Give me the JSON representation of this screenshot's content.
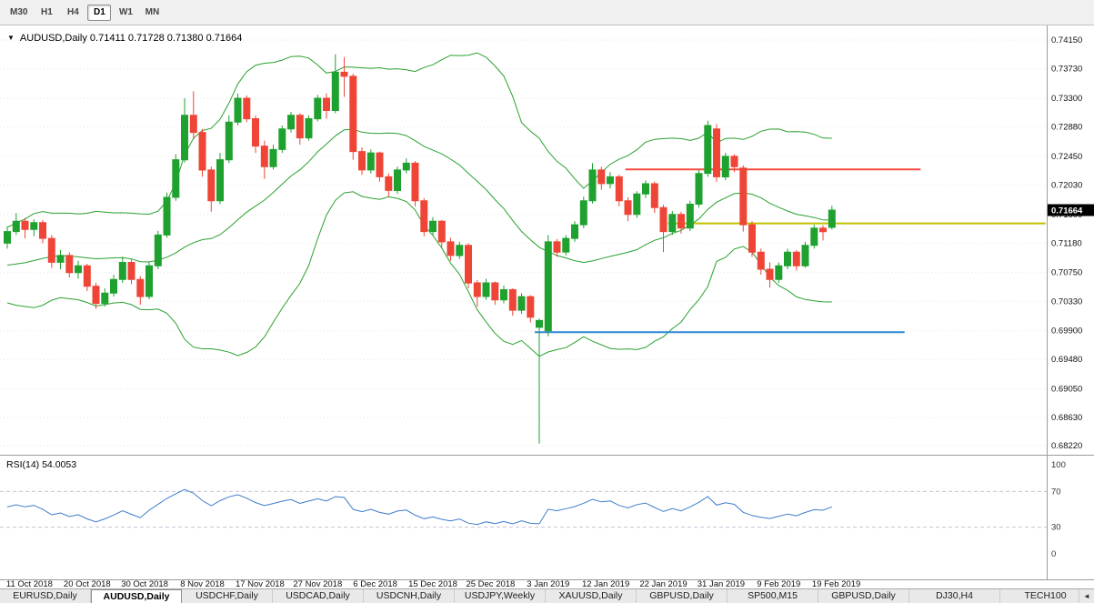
{
  "toolbar": {
    "timeframes": [
      {
        "label": "M30",
        "active": false
      },
      {
        "label": "H1",
        "active": false
      },
      {
        "label": "H4",
        "active": false
      },
      {
        "label": "D1",
        "active": true
      },
      {
        "label": "W1",
        "active": false
      },
      {
        "label": "MN",
        "active": false
      }
    ]
  },
  "chart": {
    "collapse_icon": "▼",
    "title": "AUDUSD,Daily 0.71411 0.71728 0.71380 0.71664",
    "price_badge": "0.71664",
    "rsi_label": "RSI(14) 54.0053"
  },
  "chart_data": {
    "type": "candlestick",
    "symbol": "AUDUSD",
    "timeframe": "Daily",
    "ohlc_current": {
      "open": 0.71411,
      "high": 0.71728,
      "low": 0.7138,
      "close": 0.71664
    },
    "ylim": [
      0.68127,
      0.7431
    ],
    "price_axis_labels": [
      "0.74150",
      "0.73730",
      "0.73300",
      "0.72880",
      "0.72450",
      "0.72030",
      "0.71600",
      "0.71180",
      "0.70750",
      "0.70330",
      "0.69900",
      "0.69480",
      "0.69050",
      "0.68630",
      "0.68220"
    ],
    "x_labels": [
      {
        "text": "11 Oct 2018",
        "i": 2.5
      },
      {
        "text": "20 Oct 2018",
        "i": 9
      },
      {
        "text": "30 Oct 2018",
        "i": 15.5
      },
      {
        "text": "8 Nov 2018",
        "i": 22
      },
      {
        "text": "17 Nov 2018",
        "i": 28.5
      },
      {
        "text": "27 Nov 2018",
        "i": 35
      },
      {
        "text": "6 Dec 2018",
        "i": 41.5
      },
      {
        "text": "15 Dec 2018",
        "i": 48
      },
      {
        "text": "25 Dec 2018",
        "i": 54.5
      },
      {
        "text": "3 Jan 2019",
        "i": 61
      },
      {
        "text": "12 Jan 2019",
        "i": 67.5
      },
      {
        "text": "22 Jan 2019",
        "i": 74
      },
      {
        "text": "31 Jan 2019",
        "i": 80.5
      },
      {
        "text": "9 Feb 2019",
        "i": 87
      },
      {
        "text": "19 Feb 2019",
        "i": 93.5
      }
    ],
    "pre_closes": [
      0.716,
      0.7145,
      0.713,
      0.715,
      0.7165,
      0.714,
      0.712,
      0.71,
      0.7085,
      0.706,
      0.704,
      0.7065,
      0.709,
      0.711,
      0.7085,
      0.7055,
      0.7035,
      0.705,
      0.708,
      0.7105,
      0.712,
      0.7095,
      0.7075,
      0.71,
      0.7115
    ],
    "candles": [
      [
        0.7118,
        0.7142,
        0.711,
        0.7135
      ],
      [
        0.7135,
        0.7162,
        0.713,
        0.715
      ],
      [
        0.715,
        0.7155,
        0.7125,
        0.7138
      ],
      [
        0.7138,
        0.7153,
        0.7128,
        0.7148
      ],
      [
        0.7148,
        0.7152,
        0.7118,
        0.7125
      ],
      [
        0.7125,
        0.713,
        0.7082,
        0.709
      ],
      [
        0.709,
        0.7108,
        0.708,
        0.71
      ],
      [
        0.71,
        0.7105,
        0.7068,
        0.7075
      ],
      [
        0.7075,
        0.7092,
        0.7066,
        0.7085
      ],
      [
        0.7085,
        0.7088,
        0.7048,
        0.7055
      ],
      [
        0.7055,
        0.706,
        0.7022,
        0.703
      ],
      [
        0.703,
        0.7052,
        0.7025,
        0.7045
      ],
      [
        0.7045,
        0.7072,
        0.704,
        0.7065
      ],
      [
        0.7065,
        0.7098,
        0.706,
        0.709
      ],
      [
        0.709,
        0.7094,
        0.7058,
        0.7065
      ],
      [
        0.7065,
        0.707,
        0.7028,
        0.704
      ],
      [
        0.704,
        0.709,
        0.7036,
        0.7085
      ],
      [
        0.7085,
        0.7136,
        0.708,
        0.713
      ],
      [
        0.713,
        0.7192,
        0.7126,
        0.7185
      ],
      [
        0.7185,
        0.7248,
        0.718,
        0.724
      ],
      [
        0.724,
        0.733,
        0.7236,
        0.7305
      ],
      [
        0.7305,
        0.734,
        0.727,
        0.728
      ],
      [
        0.728,
        0.7285,
        0.7215,
        0.7225
      ],
      [
        0.7225,
        0.723,
        0.7164,
        0.718
      ],
      [
        0.718,
        0.725,
        0.7175,
        0.724
      ],
      [
        0.724,
        0.7305,
        0.7235,
        0.7295
      ],
      [
        0.7295,
        0.7337,
        0.729,
        0.733
      ],
      [
        0.733,
        0.7334,
        0.7295,
        0.73
      ],
      [
        0.73,
        0.7305,
        0.725,
        0.726
      ],
      [
        0.726,
        0.7268,
        0.7212,
        0.723
      ],
      [
        0.723,
        0.7262,
        0.7226,
        0.7255
      ],
      [
        0.7255,
        0.729,
        0.725,
        0.7285
      ],
      [
        0.7285,
        0.731,
        0.728,
        0.7305
      ],
      [
        0.7305,
        0.7308,
        0.7262,
        0.7272
      ],
      [
        0.7272,
        0.7305,
        0.7268,
        0.73
      ],
      [
        0.73,
        0.7335,
        0.7296,
        0.733
      ],
      [
        0.733,
        0.7337,
        0.73,
        0.7312
      ],
      [
        0.7312,
        0.7394,
        0.7308,
        0.7368
      ],
      [
        0.7368,
        0.739,
        0.7332,
        0.7362
      ],
      [
        0.7362,
        0.7366,
        0.724,
        0.7252
      ],
      [
        0.7252,
        0.7258,
        0.7218,
        0.7225
      ],
      [
        0.7225,
        0.7255,
        0.722,
        0.725
      ],
      [
        0.725,
        0.7252,
        0.7208,
        0.7215
      ],
      [
        0.7215,
        0.722,
        0.7186,
        0.7195
      ],
      [
        0.7195,
        0.723,
        0.719,
        0.7225
      ],
      [
        0.7225,
        0.7242,
        0.722,
        0.7235
      ],
      [
        0.7235,
        0.7238,
        0.7172,
        0.718
      ],
      [
        0.718,
        0.7184,
        0.7128,
        0.7135
      ],
      [
        0.7135,
        0.7156,
        0.713,
        0.715
      ],
      [
        0.715,
        0.7152,
        0.7112,
        0.712
      ],
      [
        0.712,
        0.7126,
        0.7092,
        0.71
      ],
      [
        0.71,
        0.712,
        0.7095,
        0.7115
      ],
      [
        0.7115,
        0.7118,
        0.7052,
        0.706
      ],
      [
        0.706,
        0.7064,
        0.7025,
        0.704
      ],
      [
        0.704,
        0.7066,
        0.7035,
        0.706
      ],
      [
        0.706,
        0.7062,
        0.7028,
        0.7035
      ],
      [
        0.7035,
        0.7056,
        0.703,
        0.705
      ],
      [
        0.705,
        0.7052,
        0.7012,
        0.702
      ],
      [
        0.702,
        0.7045,
        0.7015,
        0.704
      ],
      [
        0.704,
        0.7042,
        0.7002,
        0.701
      ],
      [
        0.6995,
        0.7008,
        0.6825,
        0.7005
      ],
      [
        0.699,
        0.713,
        0.6982,
        0.712
      ],
      [
        0.712,
        0.7124,
        0.7098,
        0.7105
      ],
      [
        0.7105,
        0.713,
        0.71,
        0.7125
      ],
      [
        0.7125,
        0.715,
        0.712,
        0.7145
      ],
      [
        0.7145,
        0.7186,
        0.714,
        0.718
      ],
      [
        0.718,
        0.7235,
        0.7176,
        0.7225
      ],
      [
        0.7225,
        0.723,
        0.7196,
        0.7205
      ],
      [
        0.7205,
        0.7222,
        0.7198,
        0.7215
      ],
      [
        0.7215,
        0.7218,
        0.7172,
        0.718
      ],
      [
        0.718,
        0.7185,
        0.715,
        0.716
      ],
      [
        0.716,
        0.7194,
        0.7155,
        0.719
      ],
      [
        0.719,
        0.721,
        0.7184,
        0.7205
      ],
      [
        0.7205,
        0.7208,
        0.7162,
        0.717
      ],
      [
        0.717,
        0.7174,
        0.7105,
        0.7135
      ],
      [
        0.7135,
        0.7165,
        0.713,
        0.716
      ],
      [
        0.716,
        0.7164,
        0.7132,
        0.714
      ],
      [
        0.714,
        0.718,
        0.7136,
        0.7175
      ],
      [
        0.7175,
        0.7226,
        0.717,
        0.722
      ],
      [
        0.722,
        0.7297,
        0.7215,
        0.729
      ],
      [
        0.7285,
        0.7292,
        0.7208,
        0.7215
      ],
      [
        0.7215,
        0.725,
        0.721,
        0.7245
      ],
      [
        0.7245,
        0.7248,
        0.7222,
        0.723
      ],
      [
        0.7228,
        0.7232,
        0.7135,
        0.7145
      ],
      [
        0.7145,
        0.715,
        0.7098,
        0.7105
      ],
      [
        0.7105,
        0.711,
        0.7072,
        0.708
      ],
      [
        0.708,
        0.709,
        0.7053,
        0.7065
      ],
      [
        0.7065,
        0.709,
        0.706,
        0.7085
      ],
      [
        0.7085,
        0.711,
        0.708,
        0.7105
      ],
      [
        0.7105,
        0.7108,
        0.7078,
        0.7085
      ],
      [
        0.7085,
        0.712,
        0.7082,
        0.7115
      ],
      [
        0.7115,
        0.7145,
        0.711,
        0.714
      ],
      [
        0.714,
        0.7144,
        0.7122,
        0.7135
      ],
      [
        0.71411,
        0.71728,
        0.7138,
        0.71664
      ]
    ],
    "indicators": {
      "bollinger": {
        "period": 20,
        "deviation": 2,
        "color": "#2aa12e"
      },
      "rsi": {
        "period": 14,
        "current": 54.0053,
        "color": "#3d7dca",
        "levels": [
          70,
          30
        ],
        "range": [
          0,
          100
        ],
        "axis_labels": [
          100,
          70,
          30,
          0
        ],
        "level_line_color": "#c4c4d4"
      }
    },
    "hlines": [
      {
        "name": "resistance-red",
        "price": 0.7226,
        "i1": 69.7,
        "i2": 103,
        "color": "#fa4b42",
        "width": 2
      },
      {
        "name": "level-yellow",
        "price": 0.7147,
        "i1": 74.5,
        "i2": 117.1,
        "color": "#c0c000",
        "width": 2
      },
      {
        "name": "support-blue",
        "price": 0.6988,
        "i1": 59.5,
        "i2": 101.2,
        "color": "#2f87d8",
        "width": 2
      }
    ],
    "colors": {
      "up": "#1fa12f",
      "down": "#ef4537",
      "grid": "#e6e6e6",
      "background": "#ffffff",
      "axis_text": "#111111",
      "badge_bg": "#000000",
      "badge_text": "#ffffff",
      "separator": "#9a9a9a"
    }
  },
  "tabs": {
    "scroll_left_icon": "◄",
    "items": [
      {
        "label": "EURUSD,Daily",
        "active": false
      },
      {
        "label": "AUDUSD,Daily",
        "active": true
      },
      {
        "label": "USDCHF,Daily",
        "active": false
      },
      {
        "label": "USDCAD,Daily",
        "active": false
      },
      {
        "label": "USDCNH,Daily",
        "active": false
      },
      {
        "label": "USDJPY,Weekly",
        "active": false
      },
      {
        "label": "XAUUSD,Daily",
        "active": false
      },
      {
        "label": "GBPUSD,Daily",
        "active": false
      },
      {
        "label": "SP500,M15",
        "active": false
      },
      {
        "label": "GBPUSD,Daily",
        "active": false
      },
      {
        "label": "DJ30,H4",
        "active": false
      },
      {
        "label": "TECH100",
        "active": false
      }
    ]
  }
}
